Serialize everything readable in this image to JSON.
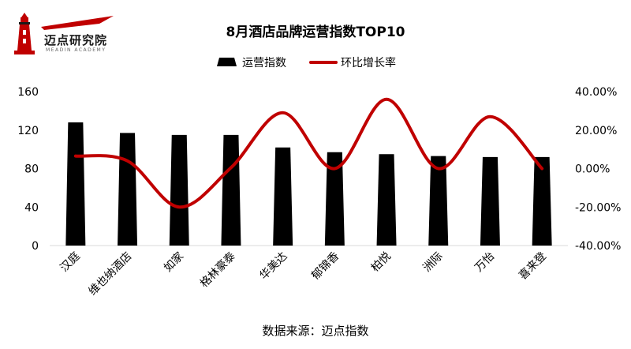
{
  "logo": {
    "text": "迈点研究院",
    "subtext": "MEADIN ACADEMY"
  },
  "chart_data": {
    "type": "bar",
    "title": "8月酒店品牌运营指数TOP10",
    "categories": [
      "汉庭",
      "维也纳酒店",
      "如家",
      "格林豪泰",
      "华美达",
      "郁锦香",
      "柏悦",
      "洲际",
      "万怡",
      "喜来登"
    ],
    "series": [
      {
        "name": "运营指数",
        "type": "bar",
        "axis": "left",
        "color": "#000000",
        "values": [
          128,
          117,
          115,
          115,
          102,
          97,
          95,
          93,
          92,
          92
        ]
      },
      {
        "name": "环比增长率",
        "type": "line",
        "axis": "right",
        "color": "#c00000",
        "values": [
          6.5,
          4.0,
          -20.0,
          0.5,
          29.0,
          0.0,
          36.0,
          0.0,
          27.0,
          0.0
        ]
      }
    ],
    "ylim_left": [
      0,
      160
    ],
    "yticks_left": [
      "0",
      "40",
      "80",
      "120",
      "160"
    ],
    "ylim_right": [
      -40,
      40
    ],
    "yticks_right": [
      "-40.00%",
      "-20.00%",
      "0.00%",
      "20.00%",
      "40.00%"
    ],
    "legend_position": "top-center",
    "grid": false
  },
  "source": "数据来源：迈点指数"
}
